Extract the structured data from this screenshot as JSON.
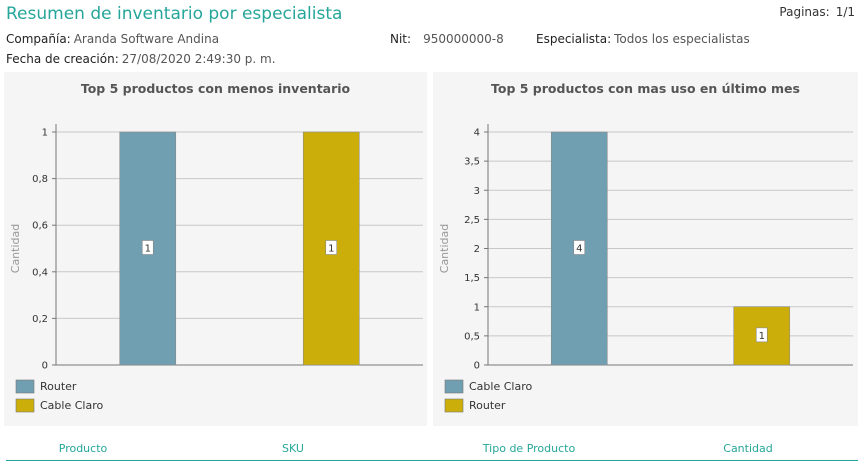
{
  "report": {
    "title": "Resumen de inventario por especialista",
    "pages_label": "Paginas:",
    "pages_value": "1/1",
    "company_label": "Compañía:",
    "company_value": "Aranda Software Andina",
    "nit_label": "Nit:",
    "nit_value": "950000000-8",
    "specialist_label": "Especialista:",
    "specialist_value": "Todos los especialistas",
    "created_label": "Fecha de creación:",
    "created_value": "27/08/2020 2:49:30 p. m."
  },
  "table": {
    "columns": [
      "Producto",
      "SKU",
      "Tipo de Producto",
      "Cantidad"
    ]
  },
  "colors": {
    "accent": "#26a69a",
    "series_blue": "#6f9fb0",
    "series_yellow": "#ccae0a"
  },
  "chart_data": [
    {
      "type": "bar",
      "title": "Top 5 productos con menos inventario",
      "ylabel": "Cantidad",
      "xlabel": "",
      "ylim": [
        0,
        1
      ],
      "yticks": [
        "0",
        "0,2",
        "0,4",
        "0,6",
        "0,8",
        "1"
      ],
      "ytick_values": [
        0,
        0.2,
        0.4,
        0.6,
        0.8,
        1
      ],
      "grid": true,
      "legend_position": "bottom-left",
      "series": [
        {
          "name": "Router",
          "values": [
            1
          ],
          "label": "1",
          "color": "#6f9fb0"
        },
        {
          "name": "Cable Claro",
          "values": [
            1
          ],
          "label": "1",
          "color": "#ccae0a"
        }
      ]
    },
    {
      "type": "bar",
      "title": "Top 5 productos con mas uso en último mes",
      "ylabel": "Cantidad",
      "xlabel": "",
      "ylim": [
        0,
        4
      ],
      "yticks": [
        "0",
        "0,5",
        "1",
        "1,5",
        "2",
        "2,5",
        "3",
        "3,5",
        "4"
      ],
      "ytick_values": [
        0,
        0.5,
        1,
        1.5,
        2,
        2.5,
        3,
        3.5,
        4
      ],
      "grid": true,
      "legend_position": "bottom-left",
      "series": [
        {
          "name": "Cable Claro",
          "values": [
            4
          ],
          "label": "4",
          "color": "#6f9fb0"
        },
        {
          "name": "Router",
          "values": [
            1
          ],
          "label": "1",
          "color": "#ccae0a"
        }
      ]
    }
  ]
}
